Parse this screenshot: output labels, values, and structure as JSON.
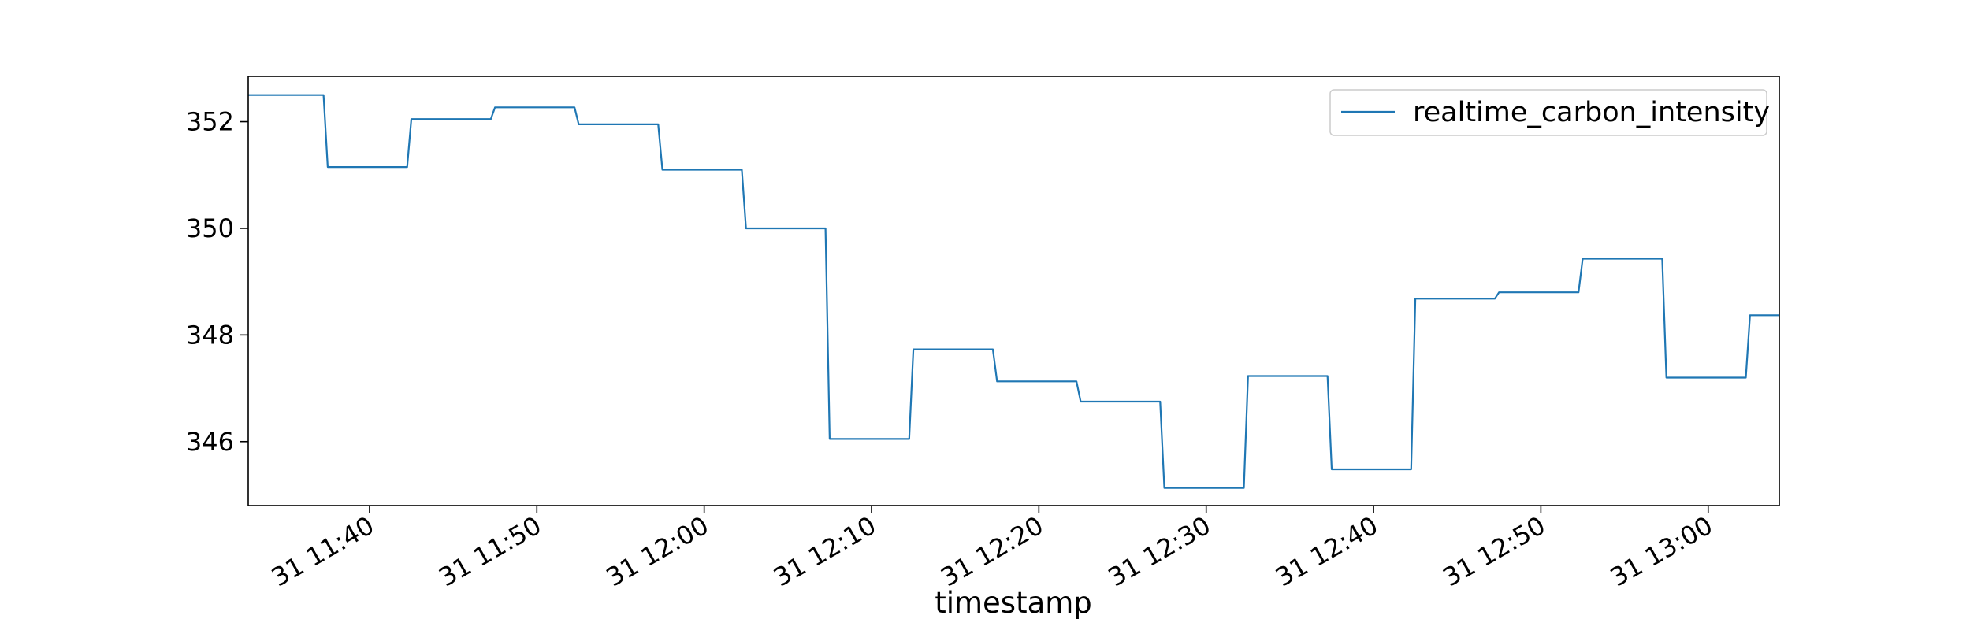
{
  "chart_data": {
    "type": "line",
    "title": "",
    "xlabel": "timestamp",
    "ylabel": "",
    "x_tick_labels": [
      "31 11:40",
      "31 11:50",
      "31 12:00",
      "31 12:10",
      "31 12:20",
      "31 12:30",
      "31 12:40",
      "31 12:50",
      "31 13:00"
    ],
    "y_tick_labels": [
      "346",
      "348",
      "350",
      "352"
    ],
    "x_ticks": [
      "11:40",
      "11:50",
      "12:00",
      "12:10",
      "12:20",
      "12:30",
      "12:40",
      "12:50",
      "13:00"
    ],
    "y_ticks": [
      346,
      348,
      350,
      352
    ],
    "xlim": [
      "11:32:45",
      "13:04:15"
    ],
    "ylim": [
      344.8,
      352.85
    ],
    "grid": false,
    "legend_position": "top-right",
    "series": [
      {
        "name": "realtime_carbon_intensity",
        "color": "#1f77b4",
        "x": [
          "11:32:45",
          "11:37:15",
          "11:37:30",
          "11:42:15",
          "11:42:30",
          "11:47:15",
          "11:47:30",
          "11:52:15",
          "11:52:30",
          "11:57:15",
          "11:57:30",
          "12:02:15",
          "12:02:30",
          "12:07:15",
          "12:07:30",
          "12:12:15",
          "12:12:30",
          "12:17:15",
          "12:17:30",
          "12:22:15",
          "12:22:30",
          "12:27:15",
          "12:27:30",
          "12:32:15",
          "12:32:30",
          "12:37:15",
          "12:37:30",
          "12:42:15",
          "12:42:30",
          "12:47:15",
          "12:47:30",
          "12:52:15",
          "12:52:30",
          "12:57:15",
          "12:57:30",
          "13:02:15",
          "13:02:30",
          "13:04:15"
        ],
        "y": [
          352.5,
          352.5,
          351.15,
          351.15,
          352.05,
          352.05,
          352.27,
          352.27,
          351.95,
          351.95,
          351.1,
          351.1,
          350,
          350,
          346.05,
          346.05,
          347.73,
          347.73,
          347.13,
          347.13,
          346.75,
          346.75,
          345.13,
          345.13,
          347.23,
          347.23,
          345.48,
          345.48,
          348.68,
          348.68,
          348.8,
          348.8,
          349.43,
          349.43,
          347.2,
          347.2,
          348.37,
          348.37
        ]
      }
    ]
  }
}
